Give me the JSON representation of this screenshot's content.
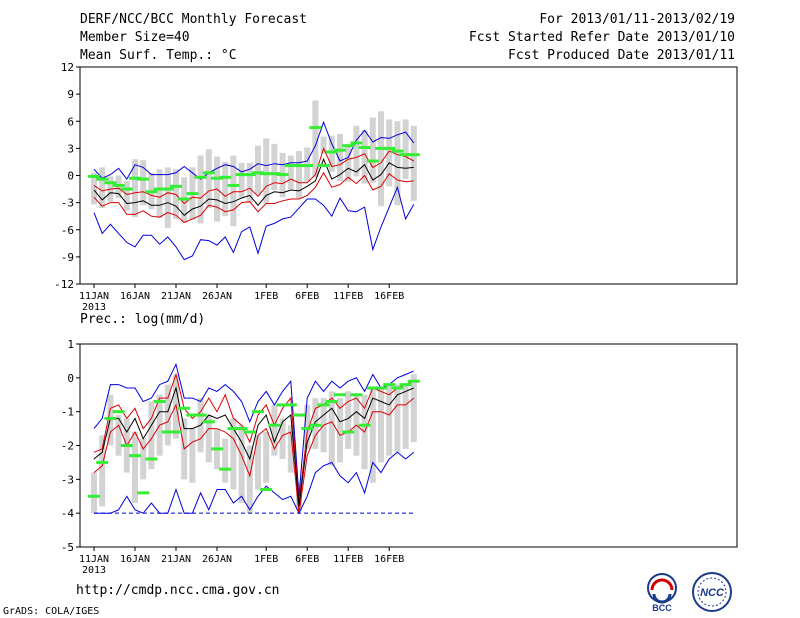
{
  "header": {
    "title": "DERF/NCC/BCC Monthly Forecast",
    "member_size": "Member Size=40",
    "variable": "Mean Surf. Temp.: °C",
    "forecast_period": "For 2013/01/11-2013/02/19",
    "start_refer": "Fcst Started Refer Date 2013/01/10",
    "produced": "Fcst Produced Date 2013/01/11"
  },
  "footer": {
    "url": "http://cmdp.ncc.cma.gov.cn",
    "credit": "GrADS: COLA/IGES",
    "logo_bcc_text": "BCC",
    "logo_ncc_text": "NCC"
  },
  "colors": {
    "box": "#d3d3d3",
    "median": "#33ee33",
    "mean": "#000000",
    "sd": "#dd0000",
    "extreme": "#0000dd"
  },
  "chart_data": [
    {
      "type": "box",
      "name": "temperature",
      "title": "Mean Surf. Temp.: °C",
      "ylim": [
        -12,
        12
      ],
      "yticks": [
        -12,
        -9,
        -6,
        -3,
        0,
        3,
        6,
        9,
        12
      ],
      "x_tick_days": [
        0,
        5,
        10,
        15,
        21,
        26,
        31,
        36
      ],
      "x_tick_labels": [
        "11JAN",
        "16JAN",
        "21JAN",
        "26JAN",
        "1FEB",
        "6FEB",
        "11FEB",
        "16FEB"
      ],
      "year_label": "2013",
      "days": 40,
      "max": [
        0.7,
        -0.3,
        0.1,
        0.8,
        -0.4,
        1.2,
        0.9,
        0.1,
        0.1,
        0.1,
        0.3,
        1,
        0.3,
        -0.4,
        0.3,
        0.8,
        1.2,
        1,
        0.4,
        0.7,
        1.3,
        1.1,
        1.3,
        1.2,
        1.4,
        1.4,
        1.6,
        3.3,
        5.9,
        3.5,
        1.6,
        2,
        3.9,
        5,
        3.7,
        4.2,
        4.1,
        4.5,
        4.8,
        3.6
      ],
      "mean_plus_sd": [
        -1.1,
        -1.7,
        -1.5,
        -1.4,
        -2.1,
        -1.9,
        -1.8,
        -2.2,
        -2.4,
        -1.9,
        -2.1,
        -3.1,
        -2.4,
        -2.5,
        -1.7,
        -1.5,
        -2.3,
        -1.8,
        -1.8,
        -1.4,
        -2.3,
        -1.2,
        -0.8,
        -0.9,
        -0.4,
        -0.8,
        -0.8,
        0.1,
        3,
        1,
        1.2,
        1.8,
        2,
        2.4,
        0.9,
        1.4,
        2.7,
        2.3,
        2.1,
        1.6
      ],
      "mean": [
        -1.6,
        -2.7,
        -1.9,
        -2,
        -3.1,
        -3,
        -2.8,
        -3.3,
        -3.3,
        -3,
        -3.4,
        -4.4,
        -3.7,
        -3.4,
        -2.6,
        -2.7,
        -3.1,
        -2.9,
        -2.5,
        -2.2,
        -3.3,
        -2.2,
        -1.8,
        -1.9,
        -1.6,
        -1.7,
        -1.2,
        -0.6,
        1.8,
        -0.4,
        0.1,
        0.8,
        0.4,
        1.2,
        -0.5,
        0.1,
        1.4,
        0.9,
        0.8,
        0.9
      ],
      "mean_minus_sd": [
        -2.4,
        -3.4,
        -3,
        -3,
        -4.3,
        -4.3,
        -3.9,
        -4.5,
        -4.6,
        -4.1,
        -4.4,
        -5.2,
        -4.8,
        -4.4,
        -3.3,
        -3.5,
        -4,
        -3.8,
        -3,
        -2.9,
        -4,
        -3.1,
        -3.1,
        -2.8,
        -2.6,
        -2.6,
        -2.2,
        -1.3,
        0.3,
        -1.3,
        -1,
        -0.2,
        -0.9,
        0,
        -1.6,
        -1.2,
        0.2,
        -0.5,
        -0.7,
        -0.6
      ],
      "min": [
        -4.1,
        -6.4,
        -5.4,
        -6.4,
        -7.4,
        -7.9,
        -6.6,
        -6.6,
        -7.6,
        -6.8,
        -7.9,
        -9.3,
        -8.9,
        -7.1,
        -7.2,
        -7.7,
        -6.8,
        -8.5,
        -6.2,
        -5.7,
        -8.6,
        -5.6,
        -5.3,
        -4.8,
        -4.6,
        -3.6,
        -2.6,
        -2.6,
        -3.3,
        -4.5,
        -2.5,
        -3.9,
        -4,
        -3.5,
        -8.2,
        -5.7,
        -3.5,
        -1.3,
        -4.8,
        -3.2
      ],
      "box_top": [
        0.3,
        0.9,
        -0.1,
        0,
        -0.6,
        1.8,
        1.7,
        0.3,
        0.7,
        0.9,
        0.7,
        -0.2,
        0.9,
        2.2,
        2.9,
        2.1,
        1.5,
        2.2,
        1.4,
        1.4,
        3.3,
        4.1,
        3.5,
        2.5,
        2.2,
        2.7,
        3.1,
        8.3,
        4.3,
        4.4,
        4.6,
        3.2,
        5.5,
        5,
        6.4,
        7.1,
        6.2,
        6,
        6.2,
        5.5
      ],
      "box_bottom": [
        -3.2,
        -3.6,
        -2.9,
        -2.5,
        -3.9,
        -4.6,
        -3.3,
        -3.7,
        -4.7,
        -5.8,
        -4.8,
        -5.2,
        -4.9,
        -5.3,
        -3.6,
        -5.1,
        -4.5,
        -5.6,
        -2.5,
        -3,
        -2.1,
        -3.1,
        -1.6,
        -2.4,
        -1.5,
        -2.5,
        -0.7,
        -0.2,
        2.4,
        0.4,
        -0.6,
        -0.7,
        -0.1,
        -0.9,
        -0.8,
        -3.4,
        -1.2,
        -3.3,
        -0.4,
        -2.8
      ],
      "median": [
        -0.1,
        -0.4,
        -0.8,
        -1.1,
        -1.5,
        -0.3,
        -0.4,
        -1.8,
        -1.5,
        -1.5,
        -1.2,
        -2.6,
        -2,
        -0.2,
        0.3,
        -0.3,
        -0.2,
        -1.1,
        0.1,
        0.1,
        0.3,
        0.2,
        0.2,
        0.1,
        1.1,
        1.1,
        1.1,
        5.3,
        1.1,
        2.6,
        2.8,
        3.3,
        3.6,
        3.1,
        1.6,
        3,
        3,
        2.7,
        2.3,
        2.3
      ]
    },
    {
      "type": "box",
      "name": "precipitation",
      "title": "Prec.: log(mm/d)",
      "ylim": [
        -5,
        1
      ],
      "yticks": [
        -5,
        -4,
        -3,
        -2,
        -1,
        0,
        1
      ],
      "x_tick_days": [
        0,
        5,
        10,
        15,
        21,
        26,
        31,
        36
      ],
      "x_tick_labels": [
        "11JAN",
        "16JAN",
        "21JAN",
        "26JAN",
        "1FEB",
        "6FEB",
        "11FEB",
        "16FEB"
      ],
      "year_label": "2013",
      "days": 40,
      "max": [
        -1.5,
        -1.2,
        -0.2,
        -0.2,
        -0.3,
        -0.3,
        -0.7,
        -0.6,
        -0.2,
        -0.1,
        0.4,
        -0.6,
        -0.6,
        -0.7,
        -0.3,
        -0.4,
        -0.2,
        -0.4,
        -0.7,
        -1.3,
        -0.7,
        -0.4,
        -0.8,
        -0.4,
        -0.1,
        -3.5,
        -0.6,
        -0.1,
        -0.4,
        -0.1,
        -0.3,
        -0.1,
        0,
        -0.4,
        0.1,
        -0.3,
        -0.2,
        0,
        0.1,
        0.2
      ],
      "mean_plus_sd": [
        -2.2,
        -2.1,
        -0.9,
        -0.8,
        -1.2,
        -0.9,
        -1.5,
        -1.2,
        -0.6,
        -0.6,
        0.1,
        -0.9,
        -1.2,
        -1.0,
        -0.6,
        -1.0,
        -0.5,
        -1.2,
        -1.4,
        -1.9,
        -1.1,
        -0.8,
        -1.4,
        -0.9,
        -0.6,
        -3.7,
        -1.6,
        -0.9,
        -0.8,
        -0.6,
        -0.9,
        -0.7,
        -0.6,
        -0.9,
        -0.3,
        -0.4,
        -0.5,
        -0.3,
        -0.2,
        -0.1
      ],
      "mean": [
        -2.4,
        -2.2,
        -1.2,
        -1.2,
        -1.6,
        -1.2,
        -1.8,
        -1.4,
        -1.0,
        -1.0,
        -0.3,
        -1.5,
        -1.5,
        -1.4,
        -1.1,
        -1.2,
        -1.1,
        -1.5,
        -1.9,
        -2.4,
        -1.4,
        -1.1,
        -1.9,
        -1.3,
        -1.1,
        -3.8,
        -1.9,
        -1.3,
        -1.1,
        -0.9,
        -1.3,
        -1.2,
        -1.0,
        -1.2,
        -0.6,
        -0.7,
        -0.8,
        -0.5,
        -0.4,
        -0.3
      ],
      "mean_minus_sd": [
        -2.8,
        -2.6,
        -1.6,
        -1.4,
        -2.0,
        -1.6,
        -2.1,
        -1.8,
        -1.4,
        -1.3,
        -0.8,
        -2.1,
        -1.9,
        -1.8,
        -1.5,
        -1.5,
        -1.6,
        -1.8,
        -2.3,
        -2.9,
        -1.7,
        -1.5,
        -2.1,
        -1.7,
        -1.6,
        -4.0,
        -2.3,
        -1.7,
        -1.4,
        -1.3,
        -1.7,
        -1.6,
        -1.4,
        -1.6,
        -1.0,
        -1.0,
        -1.1,
        -0.8,
        -0.8,
        -0.6
      ],
      "min": [
        -4,
        -4,
        -4,
        -3.9,
        -3.5,
        -3.9,
        -4,
        -3.7,
        -4,
        -4,
        -3.3,
        -4,
        -4,
        -3.4,
        -3.9,
        -3.3,
        -3.3,
        -3.7,
        -3.5,
        -3.9,
        -3.5,
        -3.2,
        -3.4,
        -3.6,
        -3.5,
        -4.0,
        -3.5,
        -2.8,
        -2.6,
        -2.5,
        -2.9,
        -3.1,
        -2.8,
        -3.4,
        -2.5,
        -2.8,
        -2.4,
        -2.2,
        -2.4,
        -2.2
      ],
      "box_top": [
        -2.8,
        -1.7,
        -0.5,
        -1.1,
        -1.2,
        -1.6,
        -1.8,
        -0.7,
        -0.5,
        -0.2,
        0.1,
        -1.2,
        -1.5,
        -0.6,
        -1.1,
        -1.5,
        -1.8,
        -1.2,
        -1.4,
        -2,
        -1.7,
        -1.6,
        -0.8,
        -1.2,
        -1.4,
        -3.1,
        -0.8,
        -0.6,
        -0.6,
        -0.4,
        -0.6,
        -0.4,
        -0.5,
        -0.5,
        -0.3,
        -0.3,
        -0.2,
        -0.2,
        -0.2,
        0.1
      ],
      "box_bottom": [
        -4,
        -3.8,
        -2,
        -2.3,
        -2.8,
        -3.7,
        -3,
        -2.7,
        -2.3,
        -2,
        -1.8,
        -3,
        -3.1,
        -2.2,
        -2.5,
        -2.7,
        -3.1,
        -3.3,
        -3.7,
        -4,
        -3.3,
        -3.1,
        -2.3,
        -2.4,
        -2.8,
        -3.9,
        -2.1,
        -2.1,
        -2.2,
        -2.6,
        -2.5,
        -2.1,
        -2.3,
        -2.7,
        -3.1,
        -2.5,
        -2.3,
        -2.2,
        -2.1,
        -1.9
      ],
      "median": [
        -3.5,
        -2.5,
        -1.2,
        -1,
        -2,
        -2.3,
        -3.4,
        -2.4,
        -0.7,
        -1.6,
        -1.6,
        -0.9,
        -1.1,
        -1.1,
        -1.3,
        -2.1,
        -2.7,
        -1.5,
        -1.5,
        -1.6,
        -1,
        -3.3,
        -1.4,
        -0.8,
        -0.8,
        -1.1,
        -1.5,
        -1.4,
        -0.8,
        -0.7,
        -0.5,
        -1.6,
        -0.5,
        -1.4,
        -0.3,
        -0.3,
        -0.2,
        -0.3,
        -0.2,
        -0.1
      ]
    }
  ]
}
